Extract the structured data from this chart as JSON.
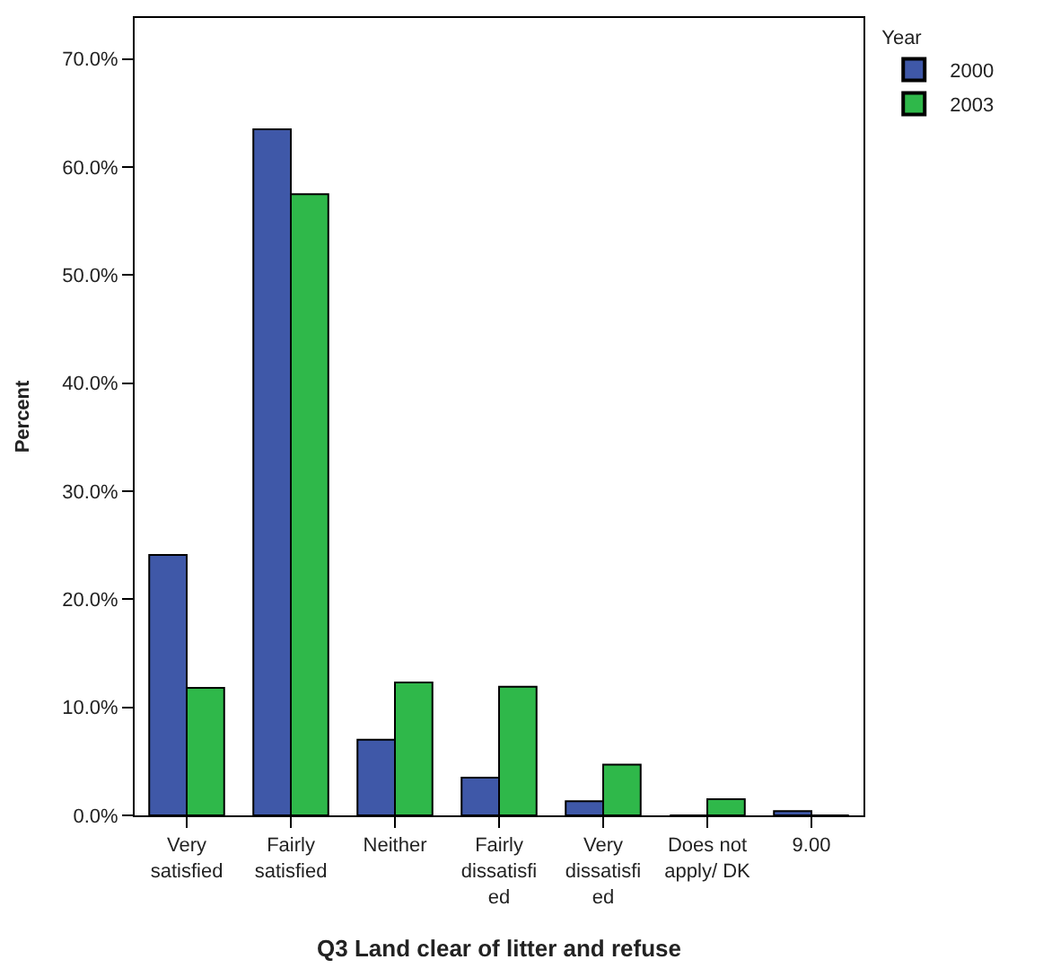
{
  "chart_data": {
    "type": "bar",
    "xlabel": "Q3 Land clear of litter and refuse",
    "ylabel": "Percent",
    "legend_title": "Year",
    "categories": [
      "Very satisfied",
      "Fairly satisfied",
      "Neither",
      "Fairly dissatisfied",
      "Very dissatisfied",
      "Does not apply/ DK",
      "9.00"
    ],
    "series": [
      {
        "name": "2000",
        "color": "#3f58a8",
        "values": [
          24.1,
          63.5,
          7.0,
          3.5,
          1.3,
          0,
          0.4
        ]
      },
      {
        "name": "2003",
        "color": "#2fb84a",
        "values": [
          11.8,
          57.5,
          12.3,
          11.9,
          4.7,
          1.5,
          0
        ]
      }
    ],
    "ylim": [
      0,
      73.8
    ],
    "yticks": [
      {
        "value": 0,
        "label": "0.0%"
      },
      {
        "value": 10,
        "label": "10.0%"
      },
      {
        "value": 20,
        "label": "20.0%"
      },
      {
        "value": 30,
        "label": "30.0%"
      },
      {
        "value": 40,
        "label": "40.0%"
      },
      {
        "value": 50,
        "label": "50.0%"
      },
      {
        "value": 60,
        "label": "60.0%"
      },
      {
        "value": 70,
        "label": "70.0%"
      }
    ],
    "legend": "top right"
  }
}
